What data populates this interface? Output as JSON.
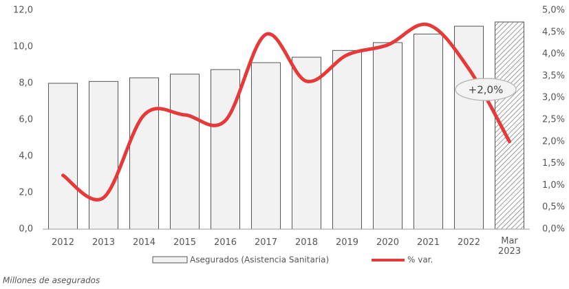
{
  "chart_data": {
    "type": "bar_line",
    "categories": [
      "2012",
      "2013",
      "2014",
      "2015",
      "2016",
      "2017",
      "2018",
      "2019",
      "2020",
      "2021",
      "2022",
      "Mar 2023"
    ],
    "series": [
      {
        "name": "Asegurados (Asistencia Sanitaria)",
        "type": "bar",
        "color": "#f2f2f2",
        "values": [
          8.0,
          8.1,
          8.3,
          8.5,
          8.75,
          9.13,
          9.43,
          9.8,
          10.23,
          10.7,
          11.13,
          11.36
        ]
      },
      {
        "name": "% var.",
        "type": "line",
        "axis": "y2",
        "color": "#e63a3a",
        "values": [
          1.23,
          0.72,
          2.61,
          2.61,
          2.48,
          4.45,
          3.38,
          3.98,
          4.21,
          4.67,
          3.66,
          2.0
        ]
      }
    ],
    "ylim": [
      0,
      12
    ],
    "yticks": [
      {
        "value": 0,
        "label": "0,0"
      },
      {
        "value": 2,
        "label": "2,0"
      },
      {
        "value": 4,
        "label": "4,0"
      },
      {
        "value": 6,
        "label": "6,0"
      },
      {
        "value": 8,
        "label": "8,0"
      },
      {
        "value": 10,
        "label": "10,0"
      },
      {
        "value": 12,
        "label": "12,0"
      }
    ],
    "y2lim": [
      0,
      5
    ],
    "y2ticks": [
      {
        "value": 0,
        "label": "0,0%"
      },
      {
        "value": 0.5,
        "label": "0,5%"
      },
      {
        "value": 1,
        "label": "1,0%"
      },
      {
        "value": 1.5,
        "label": "1,5%"
      },
      {
        "value": 2,
        "label": "2,0%"
      },
      {
        "value": 2.5,
        "label": "2,5%"
      },
      {
        "value": 3,
        "label": "3,0%"
      },
      {
        "value": 3.5,
        "label": "3,5%"
      },
      {
        "value": 4,
        "label": "4,0%"
      },
      {
        "value": 4.5,
        "label": "4,5%"
      },
      {
        "value": 5,
        "label": "5,0%"
      }
    ],
    "annotation": "+2,0%",
    "footnote": "Millones de asegurados"
  }
}
